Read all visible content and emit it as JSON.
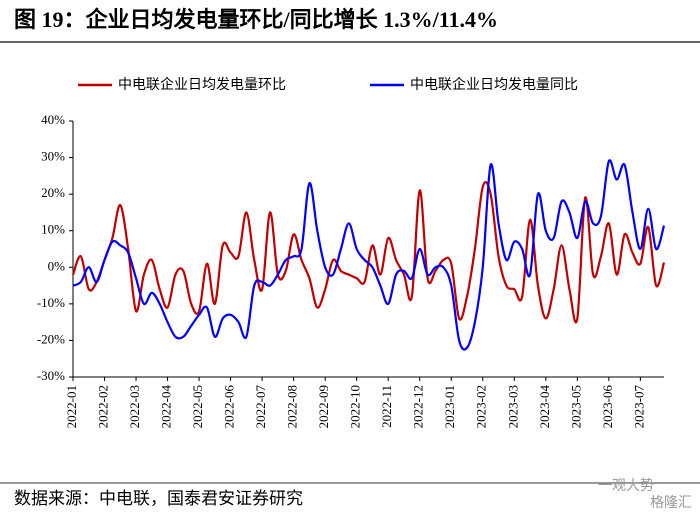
{
  "chart_data": {
    "type": "line",
    "title": "图 19：企业日均发电量环比/同比增长 1.3%/11.4%",
    "source": "数据来源：中电联，国泰君安证券研究",
    "watermark": [
      "一观大势",
      "格隆汇"
    ],
    "categories": [
      "2022-01",
      null,
      null,
      null,
      "2022-02",
      null,
      null,
      null,
      "2022-03",
      null,
      null,
      null,
      "2022-04",
      null,
      null,
      null,
      "2022-05",
      null,
      null,
      null,
      "2022-06",
      null,
      null,
      null,
      "2022-07",
      null,
      null,
      null,
      "2022-08",
      null,
      null,
      null,
      "2022-09",
      null,
      null,
      null,
      "2022-10",
      null,
      null,
      null,
      "2022-11",
      null,
      null,
      null,
      "2022-12",
      null,
      null,
      null,
      "2023-01",
      null,
      null,
      null,
      "2023-02",
      null,
      null,
      null,
      "2023-03",
      null,
      null,
      null,
      "2023-04",
      null,
      null,
      null,
      "2023-05",
      null,
      null,
      null,
      "2023-06",
      null,
      null,
      null,
      "2023-07",
      null,
      null,
      null
    ],
    "series": [
      {
        "name": "中电联企业日均发电量环比",
        "color": "#c00000",
        "values": [
          -2,
          3,
          -6,
          -4,
          2,
          8,
          17,
          5,
          -12,
          -2,
          2,
          -6,
          -11,
          -2,
          -1,
          -10,
          -12,
          1,
          -10,
          6,
          4,
          3,
          15,
          2,
          -6,
          15,
          -2,
          -1,
          9,
          2,
          -3,
          -11,
          -6,
          2,
          -1,
          -2,
          -3,
          -4,
          6,
          -2,
          8,
          2,
          -2,
          -8,
          21,
          -3,
          -1,
          2,
          1,
          -14,
          -8,
          5,
          22,
          20,
          3,
          -5,
          -6,
          -8,
          13,
          -5,
          -14,
          -6,
          6,
          -6,
          -14,
          19,
          -2,
          3,
          12,
          -2,
          9,
          4,
          1,
          11,
          -5,
          1.3
        ]
      },
      {
        "name": "中电联企业日均发电量同比",
        "color": "#0000ff",
        "values": [
          -5,
          -4,
          0,
          -4,
          2,
          7,
          6,
          4,
          -3,
          -10,
          -7,
          -10,
          -15,
          -19,
          -19,
          -16,
          -13,
          -11,
          -19,
          -14,
          -13,
          -15,
          -19,
          -5,
          -4,
          -5,
          -2,
          2,
          3,
          5,
          23,
          10,
          0,
          -2,
          5,
          12,
          5,
          2,
          0,
          -5,
          -10,
          -2,
          -1,
          -3,
          5,
          -2,
          0,
          0,
          -5,
          -20,
          -22,
          -15,
          0,
          28,
          12,
          2,
          7,
          5,
          -2,
          20,
          10,
          8,
          18,
          15,
          8,
          18,
          12,
          14,
          29,
          24,
          28,
          15,
          5,
          16,
          5,
          11.4
        ]
      }
    ],
    "ylim": [
      -30,
      40
    ],
    "yticks": [
      {
        "value": -30,
        "label": "-30%"
      },
      {
        "value": -20,
        "label": "-20%"
      },
      {
        "value": -10,
        "label": "-10%"
      },
      {
        "value": 0,
        "label": "0%"
      },
      {
        "value": 10,
        "label": "10%"
      },
      {
        "value": 20,
        "label": "20%"
      },
      {
        "value": 30,
        "label": "30%"
      },
      {
        "value": 40,
        "label": "40%"
      }
    ],
    "legend": "top",
    "grid": false
  }
}
